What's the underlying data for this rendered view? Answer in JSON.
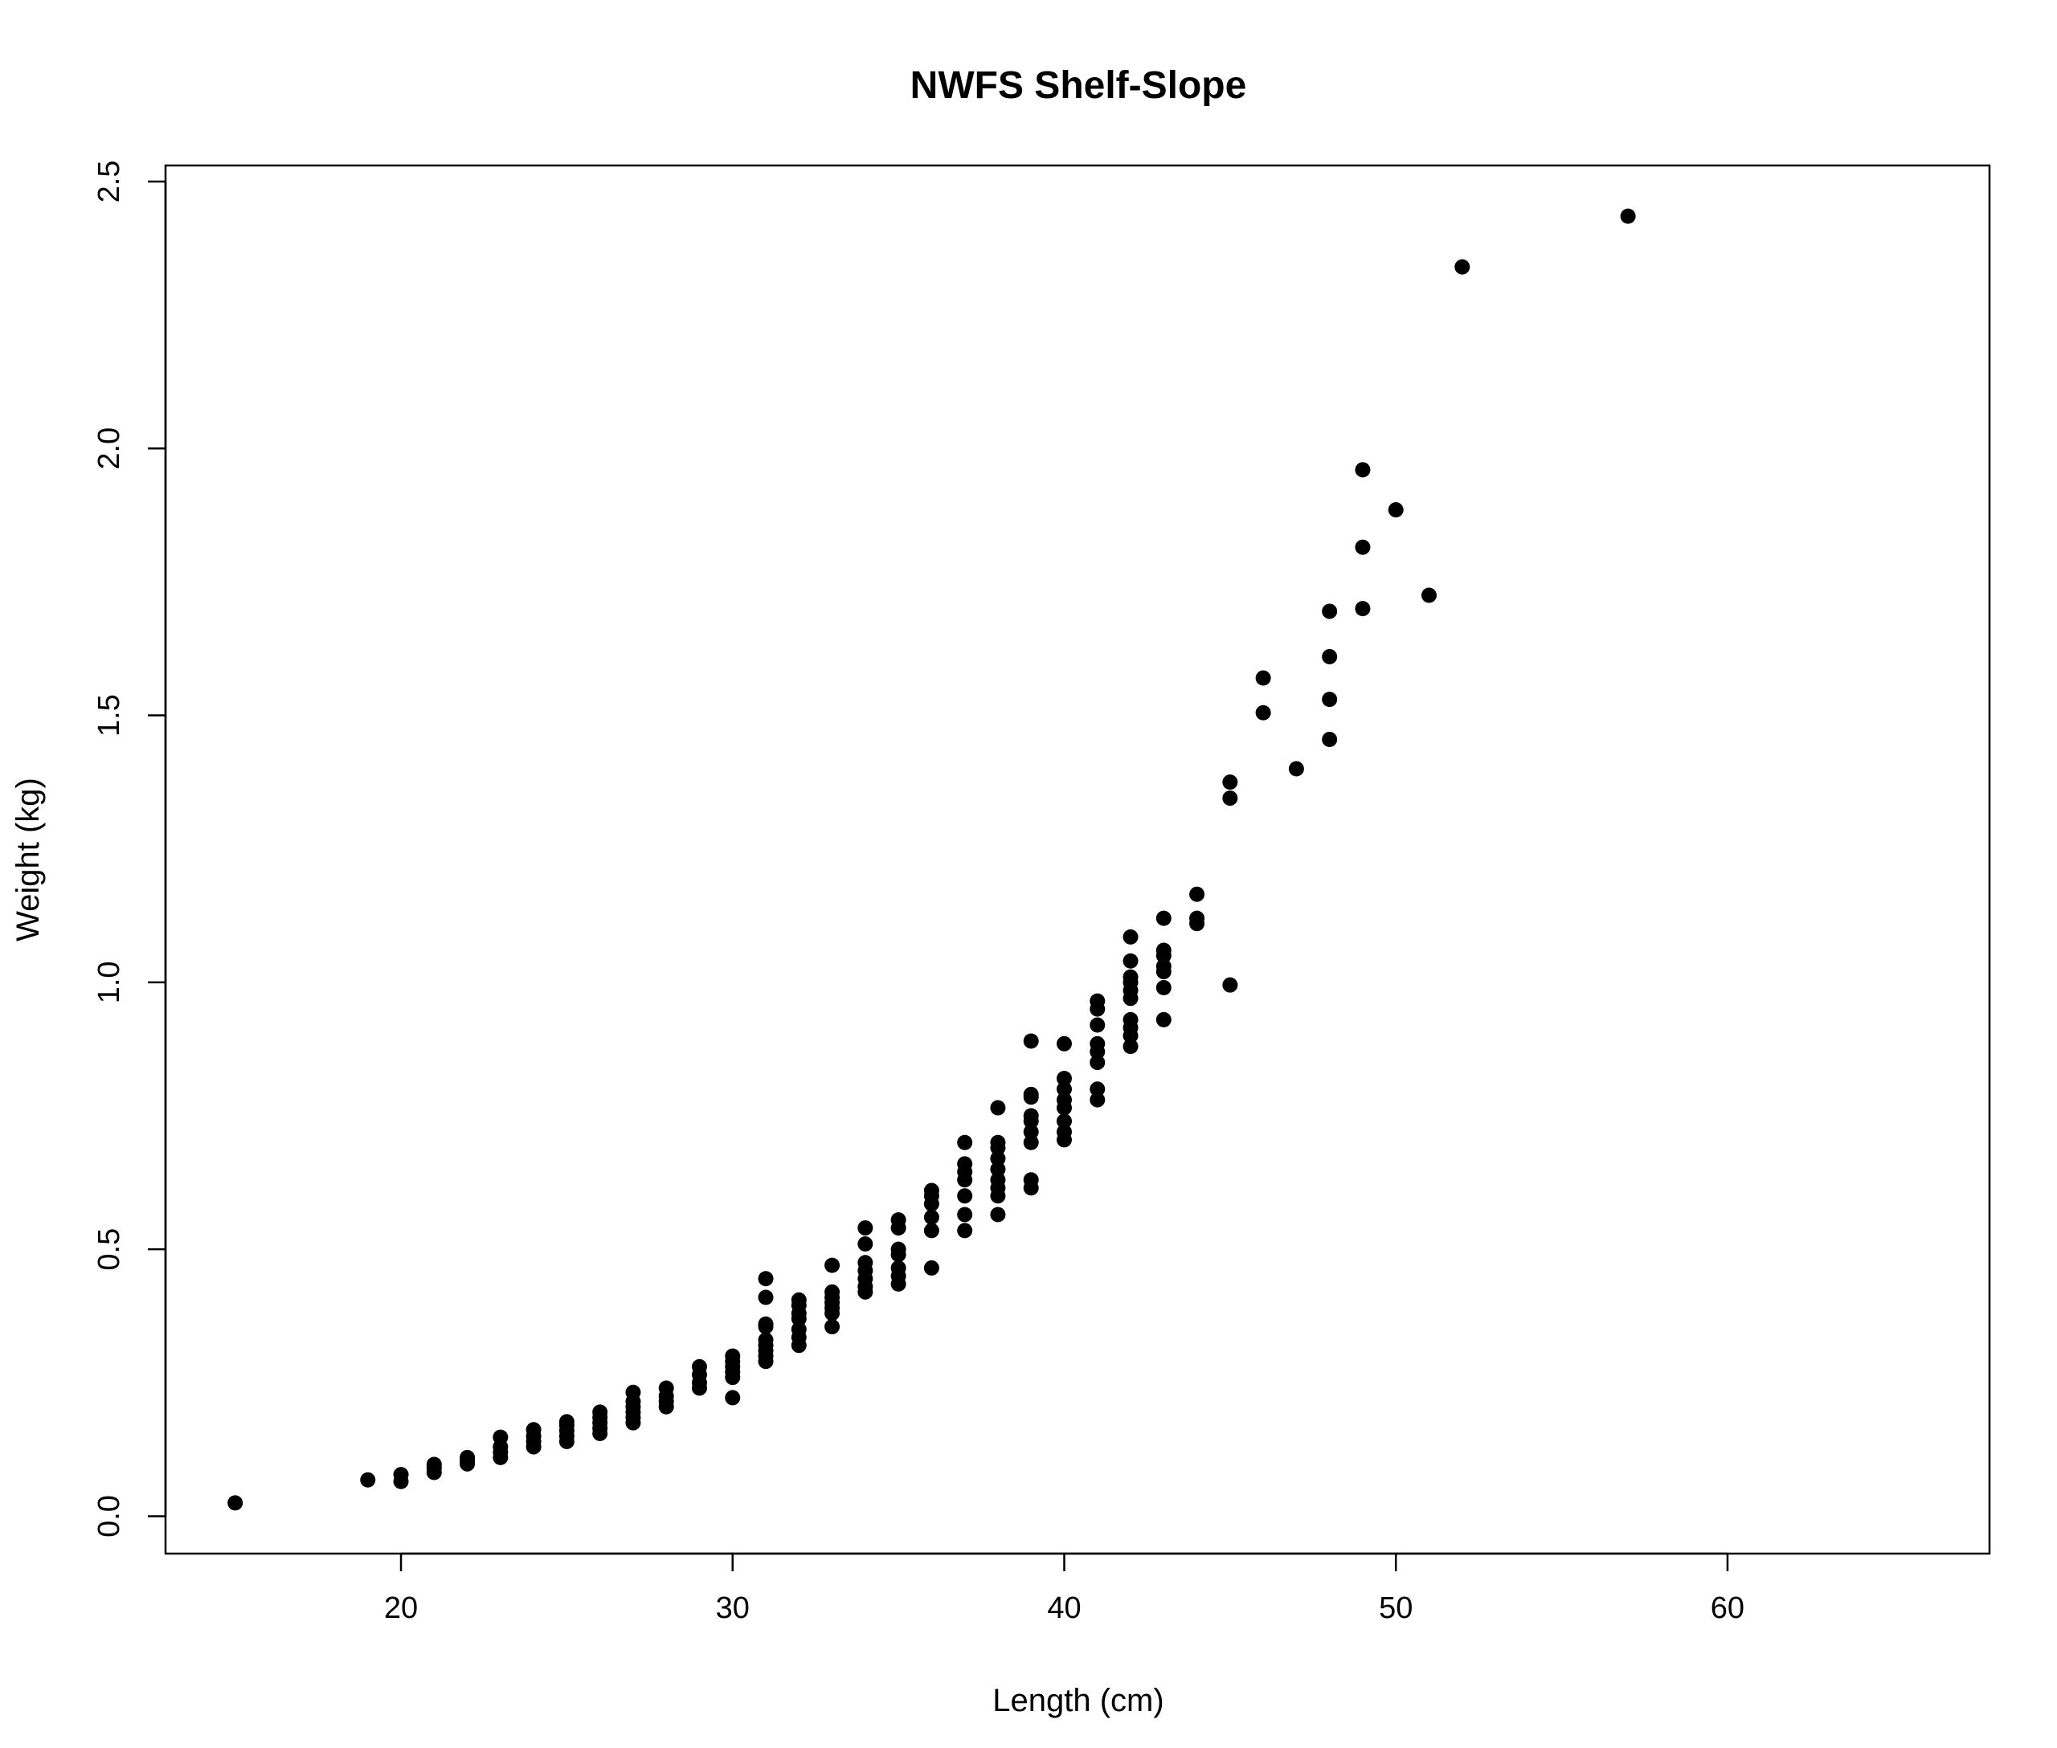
{
  "chart_data": {
    "type": "scatter",
    "title": "NWFS Shelf-Slope",
    "xlabel": "Length (cm)",
    "ylabel": "Weight (kg)",
    "xlim": [
      12.9,
      67.9
    ],
    "ylim": [
      -0.07,
      2.53
    ],
    "xticks": [
      20,
      30,
      40,
      50,
      60
    ],
    "yticks": [
      0.0,
      0.5,
      1.0,
      1.5,
      2.0,
      2.5
    ],
    "xtick_labels": [
      "20",
      "30",
      "40",
      "50",
      "60"
    ],
    "ytick_labels": [
      "0.0",
      "0.5",
      "1.0",
      "1.5",
      "2.0",
      "2.5"
    ],
    "grid": false,
    "legend": "none",
    "marker_color": "#000000",
    "points": [
      [
        15,
        0.025
      ],
      [
        19,
        0.068
      ],
      [
        20,
        0.065
      ],
      [
        20,
        0.078
      ],
      [
        21,
        0.082
      ],
      [
        21,
        0.09
      ],
      [
        21,
        0.097
      ],
      [
        22,
        0.098
      ],
      [
        22,
        0.104
      ],
      [
        22,
        0.11
      ],
      [
        23,
        0.11
      ],
      [
        23,
        0.12
      ],
      [
        23,
        0.13
      ],
      [
        23,
        0.148
      ],
      [
        24,
        0.13
      ],
      [
        24,
        0.14
      ],
      [
        24,
        0.15
      ],
      [
        24,
        0.162
      ],
      [
        25,
        0.14
      ],
      [
        25,
        0.15
      ],
      [
        25,
        0.16
      ],
      [
        25,
        0.17
      ],
      [
        25,
        0.177
      ],
      [
        26,
        0.155
      ],
      [
        26,
        0.165
      ],
      [
        26,
        0.175
      ],
      [
        26,
        0.185
      ],
      [
        26,
        0.195
      ],
      [
        27,
        0.175
      ],
      [
        27,
        0.185
      ],
      [
        27,
        0.195
      ],
      [
        27,
        0.205
      ],
      [
        27,
        0.215
      ],
      [
        27,
        0.232
      ],
      [
        28,
        0.205
      ],
      [
        28,
        0.215
      ],
      [
        28,
        0.225
      ],
      [
        28,
        0.24
      ],
      [
        29,
        0.24
      ],
      [
        29,
        0.25
      ],
      [
        29,
        0.265
      ],
      [
        29,
        0.28
      ],
      [
        30,
        0.222
      ],
      [
        30,
        0.26
      ],
      [
        30,
        0.27
      ],
      [
        30,
        0.28
      ],
      [
        30,
        0.29
      ],
      [
        30,
        0.3
      ],
      [
        31,
        0.29
      ],
      [
        31,
        0.3
      ],
      [
        31,
        0.31
      ],
      [
        31,
        0.32
      ],
      [
        31,
        0.33
      ],
      [
        31,
        0.355
      ],
      [
        31,
        0.36
      ],
      [
        31,
        0.41
      ],
      [
        31,
        0.445
      ],
      [
        32,
        0.32
      ],
      [
        32,
        0.335
      ],
      [
        32,
        0.35
      ],
      [
        32,
        0.37
      ],
      [
        32,
        0.38
      ],
      [
        32,
        0.395
      ],
      [
        32,
        0.405
      ],
      [
        33,
        0.355
      ],
      [
        33,
        0.38
      ],
      [
        33,
        0.39
      ],
      [
        33,
        0.4
      ],
      [
        33,
        0.41
      ],
      [
        33,
        0.42
      ],
      [
        33,
        0.47
      ],
      [
        34,
        0.42
      ],
      [
        34,
        0.43
      ],
      [
        34,
        0.445
      ],
      [
        34,
        0.46
      ],
      [
        34,
        0.475
      ],
      [
        34,
        0.51
      ],
      [
        34,
        0.54
      ],
      [
        35,
        0.435
      ],
      [
        35,
        0.45
      ],
      [
        35,
        0.465
      ],
      [
        35,
        0.49
      ],
      [
        35,
        0.5
      ],
      [
        35,
        0.54
      ],
      [
        35,
        0.555
      ],
      [
        36,
        0.465
      ],
      [
        36,
        0.535
      ],
      [
        36,
        0.56
      ],
      [
        36,
        0.585
      ],
      [
        36,
        0.6
      ],
      [
        36,
        0.61
      ],
      [
        37,
        0.535
      ],
      [
        37,
        0.565
      ],
      [
        37,
        0.6
      ],
      [
        37,
        0.63
      ],
      [
        37,
        0.645
      ],
      [
        37,
        0.66
      ],
      [
        37,
        0.7
      ],
      [
        38,
        0.565
      ],
      [
        38,
        0.6
      ],
      [
        38,
        0.615
      ],
      [
        38,
        0.63
      ],
      [
        38,
        0.65
      ],
      [
        38,
        0.67
      ],
      [
        38,
        0.69
      ],
      [
        38,
        0.7
      ],
      [
        38,
        0.765
      ],
      [
        39,
        0.615
      ],
      [
        39,
        0.63
      ],
      [
        39,
        0.7
      ],
      [
        39,
        0.72
      ],
      [
        39,
        0.74
      ],
      [
        39,
        0.75
      ],
      [
        39,
        0.785
      ],
      [
        39,
        0.79
      ],
      [
        39,
        0.89
      ],
      [
        40,
        0.705
      ],
      [
        40,
        0.72
      ],
      [
        40,
        0.74
      ],
      [
        40,
        0.765
      ],
      [
        40,
        0.78
      ],
      [
        40,
        0.8
      ],
      [
        40,
        0.82
      ],
      [
        40,
        0.885
      ],
      [
        41,
        0.78
      ],
      [
        41,
        0.8
      ],
      [
        41,
        0.85
      ],
      [
        41,
        0.87
      ],
      [
        41,
        0.885
      ],
      [
        41,
        0.92
      ],
      [
        41,
        0.95
      ],
      [
        41,
        0.965
      ],
      [
        42,
        0.88
      ],
      [
        42,
        0.9
      ],
      [
        42,
        0.915
      ],
      [
        42,
        0.93
      ],
      [
        42,
        0.97
      ],
      [
        42,
        0.985
      ],
      [
        42,
        1.0
      ],
      [
        42,
        1.01
      ],
      [
        42,
        1.04
      ],
      [
        42,
        1.085
      ],
      [
        43,
        0.93
      ],
      [
        43,
        0.99
      ],
      [
        43,
        1.02
      ],
      [
        43,
        1.03
      ],
      [
        43,
        1.05
      ],
      [
        43,
        1.06
      ],
      [
        43,
        1.12
      ],
      [
        44,
        1.11
      ],
      [
        44,
        1.12
      ],
      [
        44,
        1.165
      ],
      [
        45,
        0.995
      ],
      [
        45,
        1.345
      ],
      [
        45,
        1.375
      ],
      [
        46,
        1.505
      ],
      [
        46,
        1.57
      ],
      [
        47,
        1.4
      ],
      [
        48,
        1.455
      ],
      [
        48,
        1.53
      ],
      [
        48,
        1.61
      ],
      [
        48,
        1.695
      ],
      [
        49,
        1.7
      ],
      [
        49,
        1.815
      ],
      [
        49,
        1.96
      ],
      [
        50,
        1.885
      ],
      [
        51,
        1.725
      ],
      [
        52,
        2.34
      ],
      [
        57,
        2.435
      ]
    ]
  }
}
